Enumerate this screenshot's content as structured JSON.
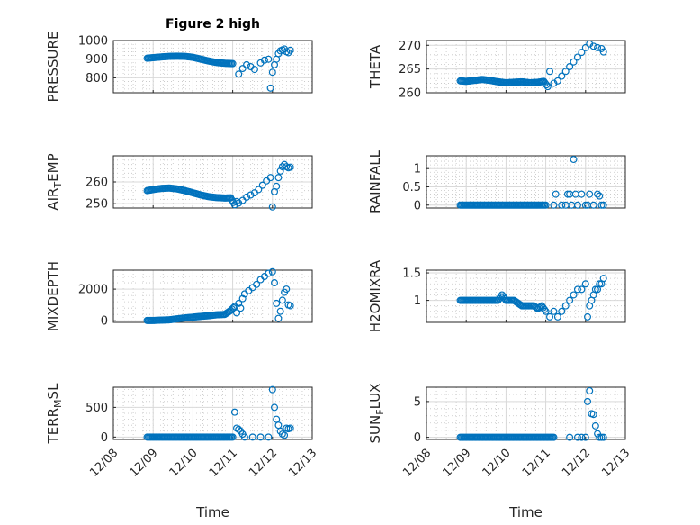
{
  "figure": {
    "title": "Figure 2 high",
    "xlabel": "Time",
    "xticklabels": [
      "12/08",
      "12/09",
      "12/10",
      "12/11",
      "12/12",
      "12/13"
    ],
    "xlim": [
      0,
      5
    ],
    "marker_color": "#0072bd"
  },
  "chart_data": [
    {
      "type": "scatter",
      "id": "pressure",
      "title": "Figure 2 high",
      "ylabel_main": "PRESSURE",
      "ylabel_sub": "",
      "ylim": [
        720,
        1000
      ],
      "yticks": [
        800,
        900,
        1000
      ],
      "yticklabels": [
        "800",
        "900",
        "1000"
      ],
      "grid": true,
      "xlabel": "",
      "x": [
        0.85,
        1.0,
        1.2,
        1.4,
        1.6,
        1.8,
        2.0,
        2.2,
        2.4,
        2.6,
        2.8,
        3.0,
        3.15,
        3.25,
        3.35,
        3.45,
        3.55,
        3.7,
        3.8,
        3.9,
        3.95,
        4.0,
        4.05,
        4.1,
        4.15,
        4.2,
        4.25,
        4.3,
        4.35,
        4.4,
        4.45
      ],
      "y": [
        905,
        908,
        912,
        915,
        916,
        915,
        910,
        900,
        890,
        882,
        878,
        876,
        820,
        850,
        870,
        860,
        845,
        880,
        895,
        900,
        745,
        830,
        870,
        900,
        930,
        945,
        950,
        955,
        940,
        935,
        948
      ],
      "points": [],
      "series": []
    },
    {
      "type": "scatter",
      "id": "theta",
      "ylabel_main": "THETA",
      "ylabel_sub": "",
      "ylim": [
        260,
        271
      ],
      "yticks": [
        260,
        265,
        270
      ],
      "yticklabels": [
        "260",
        "265",
        "270"
      ],
      "grid": true,
      "xlabel": "",
      "x": [
        0.85,
        1.0,
        1.2,
        1.4,
        1.6,
        1.8,
        2.0,
        2.2,
        2.4,
        2.6,
        2.8,
        2.95,
        3.05,
        3.1,
        3.2,
        3.3,
        3.4,
        3.5,
        3.6,
        3.7,
        3.8,
        3.9,
        4.0,
        4.1,
        4.2,
        4.3,
        4.4,
        4.45
      ],
      "y": [
        262.5,
        262.4,
        262.6,
        262.8,
        262.6,
        262.3,
        262.1,
        262.2,
        262.3,
        262.1,
        262.2,
        262.4,
        261.3,
        264.5,
        262.0,
        262.5,
        263.5,
        264.5,
        265.5,
        266.5,
        267.5,
        268.5,
        269.5,
        270.3,
        269.8,
        269.5,
        269.3,
        268.6
      ]
    },
    {
      "type": "scatter",
      "id": "air_temp",
      "ylabel_main": "AIR",
      "ylabel_sub": "T",
      "ylabel_tail": "EMP",
      "ylim": [
        248,
        272
      ],
      "yticks": [
        250,
        260
      ],
      "yticklabels": [
        "250",
        "260"
      ],
      "grid": true,
      "xlabel": "",
      "x": [
        0.85,
        1.0,
        1.2,
        1.4,
        1.6,
        1.8,
        2.0,
        2.2,
        2.4,
        2.6,
        2.8,
        2.95,
        3.05,
        3.1,
        3.15,
        3.25,
        3.35,
        3.45,
        3.55,
        3.65,
        3.75,
        3.85,
        3.95,
        4.0,
        4.05,
        4.1,
        4.15,
        4.2,
        4.25,
        4.3,
        4.35,
        4.4,
        4.45
      ],
      "y": [
        256.0,
        256.5,
        257.0,
        257.2,
        256.8,
        256.0,
        255.0,
        254.0,
        253.2,
        252.8,
        252.6,
        252.7,
        249.5,
        251.0,
        250.3,
        251.5,
        253.0,
        254.0,
        255.0,
        256.5,
        258.5,
        260.5,
        262.0,
        248.5,
        255.5,
        258.0,
        262.0,
        265.0,
        267.0,
        268.0,
        267.0,
        266.5,
        266.8
      ]
    },
    {
      "type": "scatter",
      "id": "rainfall",
      "ylabel_main": "RAINFALL",
      "ylabel_sub": "",
      "ylim": [
        -0.08,
        1.35
      ],
      "yticks": [
        0,
        0.5,
        1
      ],
      "yticklabels": [
        "0",
        "0.5",
        "1"
      ],
      "grid": true,
      "xlabel": "",
      "x": [
        0.85,
        1.2,
        1.6,
        2.0,
        2.4,
        2.8,
        3.0,
        3.2,
        3.25,
        3.4,
        3.5,
        3.55,
        3.6,
        3.65,
        3.7,
        3.75,
        3.8,
        3.9,
        4.0,
        4.05,
        4.1,
        4.2,
        4.3,
        4.35,
        4.4,
        4.45
      ],
      "y": [
        0,
        0,
        0,
        0,
        0,
        0,
        0,
        0,
        0.3,
        0,
        0,
        0.3,
        0.3,
        0,
        1.25,
        0.3,
        0,
        0.3,
        0,
        0,
        0.3,
        0,
        0.3,
        0.25,
        0,
        0
      ]
    },
    {
      "type": "scatter",
      "id": "mixdepth",
      "ylabel_main": "MIXDEPTH",
      "ylabel_sub": "",
      "ylim": [
        -100,
        3200
      ],
      "yticks": [
        0,
        2000
      ],
      "yticklabels": [
        "0",
        "2000"
      ],
      "grid": true,
      "xlabel": "",
      "x": [
        0.85,
        1.0,
        1.2,
        1.4,
        1.6,
        1.8,
        2.0,
        2.2,
        2.4,
        2.6,
        2.8,
        2.95,
        3.05,
        3.1,
        3.15,
        3.2,
        3.25,
        3.3,
        3.4,
        3.5,
        3.6,
        3.7,
        3.8,
        3.9,
        4.0,
        4.05,
        4.1,
        4.15,
        4.2,
        4.25,
        4.3,
        4.35,
        4.4,
        4.45
      ],
      "y": [
        20,
        20,
        40,
        60,
        120,
        180,
        230,
        280,
        320,
        380,
        400,
        650,
        900,
        500,
        1100,
        800,
        1400,
        1700,
        1900,
        2100,
        2300,
        2600,
        2800,
        3000,
        3100,
        2400,
        1100,
        150,
        600,
        1300,
        1800,
        2000,
        1000,
        950
      ]
    },
    {
      "type": "scatter",
      "id": "h2omixra",
      "ylabel_main": "H2OMIXRA",
      "ylabel_sub": "",
      "ylim": [
        0.6,
        1.55
      ],
      "yticks": [
        1,
        1.5
      ],
      "yticklabels": [
        "1",
        "1.5"
      ],
      "grid": true,
      "xlabel": "",
      "x": [
        0.85,
        1.0,
        1.2,
        1.4,
        1.6,
        1.8,
        1.9,
        2.0,
        2.2,
        2.4,
        2.6,
        2.7,
        2.8,
        2.9,
        3.0,
        3.1,
        3.2,
        3.3,
        3.4,
        3.5,
        3.6,
        3.7,
        3.8,
        3.9,
        4.0,
        4.05,
        4.1,
        4.15,
        4.2,
        4.25,
        4.3,
        4.35,
        4.4,
        4.45
      ],
      "y": [
        1.0,
        1.0,
        1.0,
        1.0,
        1.0,
        1.0,
        1.1,
        1.0,
        1.0,
        0.9,
        0.9,
        0.9,
        0.85,
        0.9,
        0.8,
        0.7,
        0.8,
        0.7,
        0.8,
        0.9,
        1.0,
        1.1,
        1.2,
        1.2,
        1.3,
        0.7,
        0.9,
        1.0,
        1.1,
        1.2,
        1.2,
        1.3,
        1.3,
        1.4
      ]
    },
    {
      "type": "scatter",
      "id": "terr_msl",
      "ylabel_main": "TERR",
      "ylabel_sub": "M",
      "ylabel_tail": "SL",
      "ylim": [
        -40,
        840
      ],
      "yticks": [
        0,
        500
      ],
      "yticklabels": [
        "0",
        "500"
      ],
      "grid": true,
      "xlabel": "Time",
      "x": [
        0.85,
        1.2,
        1.6,
        2.0,
        2.4,
        2.8,
        3.0,
        3.05,
        3.1,
        3.15,
        3.2,
        3.25,
        3.3,
        3.5,
        3.7,
        3.9,
        4.0,
        4.05,
        4.1,
        4.15,
        4.2,
        4.25,
        4.3,
        4.35,
        4.4,
        4.45
      ],
      "y": [
        0,
        0,
        0,
        0,
        0,
        0,
        0,
        420,
        150,
        130,
        100,
        50,
        0,
        0,
        0,
        0,
        800,
        500,
        300,
        200,
        100,
        50,
        30,
        150,
        140,
        150
      ]
    },
    {
      "type": "scatter",
      "id": "sun_flux",
      "ylabel_main": "SUN",
      "ylabel_sub": "F",
      "ylabel_tail": "LUX",
      "ylim": [
        -0.3,
        7
      ],
      "yticks": [
        0,
        5
      ],
      "yticklabels": [
        "0",
        "5"
      ],
      "grid": true,
      "xlabel": "Time",
      "x": [
        0.85,
        1.2,
        1.6,
        2.0,
        2.4,
        2.8,
        3.2,
        3.6,
        3.8,
        3.9,
        4.0,
        4.05,
        4.1,
        4.15,
        4.2,
        4.25,
        4.3,
        4.35,
        4.4,
        4.45
      ],
      "y": [
        0,
        0,
        0,
        0,
        0,
        0,
        0,
        0,
        0,
        0,
        0,
        5.0,
        6.5,
        3.3,
        3.2,
        1.6,
        0.5,
        0,
        0,
        0
      ]
    }
  ]
}
